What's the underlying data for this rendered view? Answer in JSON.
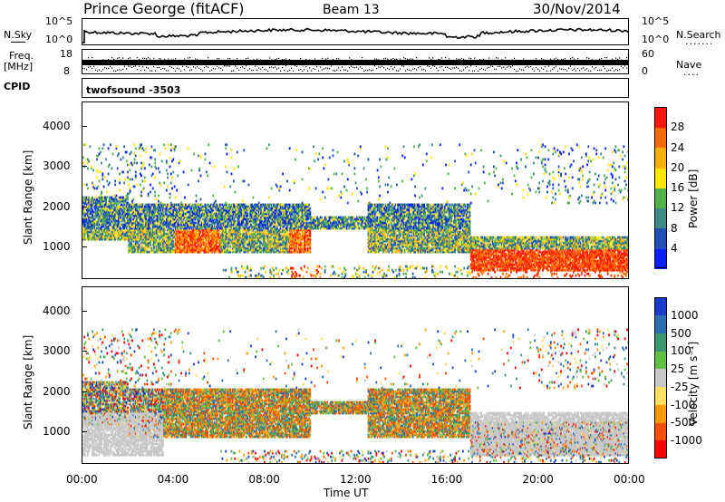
{
  "header": {
    "station": "Prince George (fitACF)",
    "beam": "Beam 13",
    "date": "30/Nov/2014"
  },
  "top_panels": {
    "nsky_label": "N.Sky",
    "nsky_ticks": [
      "10^5",
      "10^0"
    ],
    "nsearch_label": "N.Search",
    "nsearch_ticks": [
      "10^5",
      "10^0"
    ],
    "freq_label_1": "Freq.",
    "freq_label_2": "[MHz]",
    "freq_ticks": [
      "18",
      "8"
    ],
    "nave_label": "Nave",
    "nave_ticks": [
      "60",
      "0"
    ],
    "cpid_label": "CPID",
    "cpid_value": "twofsound -3503"
  },
  "chart_data": [
    {
      "type": "heatmap",
      "name": "power-panel",
      "ylabel": "Slant Range [km]",
      "ylim": [
        200,
        4600
      ],
      "yticks": [
        "1000",
        "2000",
        "3000",
        "4000"
      ],
      "colorbar_label": "Power [dB]",
      "colorbar_ticks": [
        "4",
        "8",
        "12",
        "16",
        "20",
        "24",
        "28"
      ],
      "colorbar_colors": [
        "#0a1fff",
        "#2050b8",
        "#3b8a86",
        "#52b24a",
        "#ffe600",
        "#ffb000",
        "#ff6a00",
        "#ff1800"
      ]
    },
    {
      "type": "heatmap",
      "name": "velocity-panel",
      "xlabel": "Time UT",
      "ylabel": "Slant Range [km]",
      "ylim": [
        200,
        4600
      ],
      "xticks": [
        "00:00",
        "04:00",
        "08:00",
        "12:00",
        "16:00",
        "20:00",
        "00:00"
      ],
      "yticks": [
        "1000",
        "2000",
        "3000",
        "4000"
      ],
      "colorbar_label": "Velocity [m s⁻¹]",
      "colorbar_ticks": [
        "1000",
        "500",
        "100",
        "25",
        "-25",
        "-100",
        "-500",
        "-1000"
      ],
      "colorbar_colors": [
        "#1a3cc8",
        "#2a6fb0",
        "#3a9870",
        "#60c040",
        "#c8c8c8",
        "#ffe060",
        "#ff9a00",
        "#ff5000",
        "#ff0000"
      ]
    }
  ]
}
